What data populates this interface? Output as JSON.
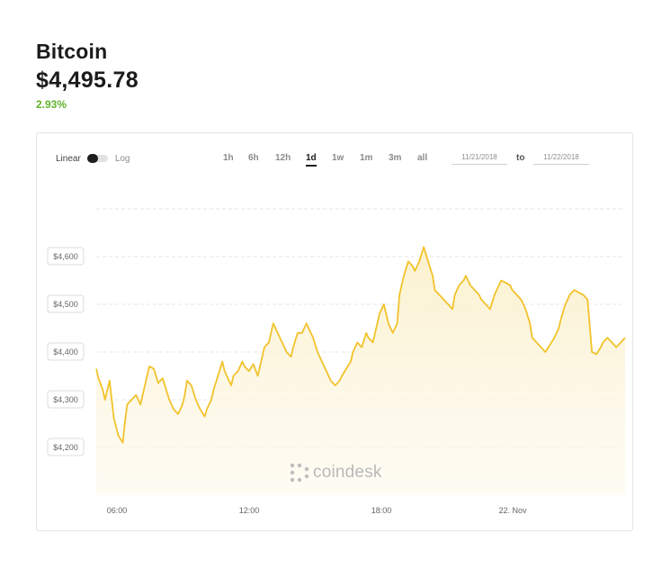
{
  "asset": {
    "name": "Bitcoin",
    "price": "$4,495.78",
    "change": "2.93%"
  },
  "scale": {
    "linear_label": "Linear",
    "log_label": "Log",
    "selected": "Linear"
  },
  "ranges": [
    {
      "label": "1h",
      "active": false
    },
    {
      "label": "6h",
      "active": false
    },
    {
      "label": "12h",
      "active": false
    },
    {
      "label": "1d",
      "active": true
    },
    {
      "label": "1w",
      "active": false
    },
    {
      "label": "1m",
      "active": false
    },
    {
      "label": "3m",
      "active": false
    },
    {
      "label": "all",
      "active": false
    }
  ],
  "date_range": {
    "from": "11/21/2018",
    "to_label": "to",
    "to": "11/22/2018"
  },
  "watermark": {
    "text": "coindesk",
    "icon": "coindesk-logo-icon"
  },
  "colors": {
    "line": "#f2c22b",
    "fill": "#fdf7df",
    "positive": "#62b32d",
    "grid": "#e6e6e6"
  },
  "chart_data": {
    "type": "area",
    "title": "",
    "xlabel": "",
    "ylabel": "",
    "x_ticks": [
      "06:00",
      "12:00",
      "18:00",
      "22. Nov"
    ],
    "y_ticks": [
      "$4,200",
      "$4,300",
      "$4,400",
      "$4,500",
      "$4,600"
    ],
    "ylim": [
      4100,
      4700
    ],
    "xlim": [
      -0.9,
      23.0
    ],
    "grid": true,
    "legend": "none",
    "series": [
      {
        "x": [
          -0.9,
          -0.8,
          -0.6,
          -0.5,
          -0.3,
          -0.1,
          0.1,
          0.3,
          0.4,
          0.5,
          0.7,
          0.9,
          1.1,
          1.3,
          1.5,
          1.7,
          1.9,
          2.1,
          2.2,
          2.4,
          2.6,
          2.8,
          3.0,
          3.1,
          3.2,
          3.4,
          3.6,
          3.8,
          4.0,
          4.1,
          4.3,
          4.4,
          4.6,
          4.8,
          4.9,
          5.1,
          5.2,
          5.3,
          5.5,
          5.7,
          5.8,
          6.0,
          6.2,
          6.4,
          6.6,
          6.7,
          6.9,
          7.1,
          7.3,
          7.5,
          7.7,
          7.9,
          8.0,
          8.2,
          8.4,
          8.6,
          8.7,
          8.9,
          9.1,
          9.3,
          9.5,
          9.7,
          9.9,
          10.1,
          10.2,
          10.4,
          10.6,
          10.7,
          10.9,
          11.1,
          11.3,
          11.4,
          11.6,
          11.8,
          11.9,
          12.1,
          12.3,
          12.5,
          12.7,
          12.8,
          13.0,
          13.2,
          13.4,
          13.5,
          13.7,
          13.9,
          14.1,
          14.3,
          14.4,
          14.6,
          14.8,
          15.0,
          15.2,
          15.3,
          15.5,
          15.7,
          15.8,
          16.0,
          16.2,
          16.4,
          16.5,
          16.7,
          16.9,
          17.1,
          17.3,
          17.4,
          17.6,
          17.8,
          17.9,
          18.1,
          18.3,
          18.5,
          18.7,
          18.8,
          19.0,
          19.2,
          19.4,
          19.6,
          19.8,
          20.0,
          20.1,
          20.3,
          20.5,
          20.7,
          20.9,
          21.1,
          21.3,
          21.5,
          21.7,
          21.9,
          22.0,
          22.2,
          22.4,
          22.6,
          22.8,
          23.0
        ],
        "values": [
          4365,
          4345,
          4320,
          4300,
          4340,
          4260,
          4225,
          4210,
          4255,
          4290,
          4300,
          4310,
          4290,
          4330,
          4370,
          4365,
          4335,
          4345,
          4330,
          4300,
          4280,
          4270,
          4290,
          4310,
          4340,
          4330,
          4300,
          4280,
          4265,
          4280,
          4300,
          4320,
          4350,
          4380,
          4360,
          4340,
          4330,
          4350,
          4360,
          4380,
          4370,
          4360,
          4375,
          4350,
          4390,
          4410,
          4420,
          4460,
          4440,
          4420,
          4400,
          4390,
          4410,
          4440,
          4440,
          4460,
          4450,
          4430,
          4400,
          4380,
          4360,
          4340,
          4330,
          4340,
          4350,
          4365,
          4380,
          4400,
          4420,
          4410,
          4440,
          4430,
          4420,
          4460,
          4480,
          4500,
          4460,
          4440,
          4460,
          4520,
          4560,
          4590,
          4580,
          4570,
          4590,
          4620,
          4590,
          4560,
          4530,
          4520,
          4510,
          4500,
          4490,
          4520,
          4540,
          4550,
          4560,
          4540,
          4530,
          4520,
          4510,
          4500,
          4490,
          4520,
          4540,
          4550,
          4545,
          4540,
          4530,
          4520,
          4510,
          4490,
          4460,
          4430,
          4420,
          4410,
          4400,
          4415,
          4430,
          4450,
          4470,
          4500,
          4520,
          4530,
          4525,
          4520,
          4510,
          4400,
          4395,
          4410,
          4420,
          4430,
          4420,
          4410,
          4420,
          4430
        ]
      }
    ]
  }
}
